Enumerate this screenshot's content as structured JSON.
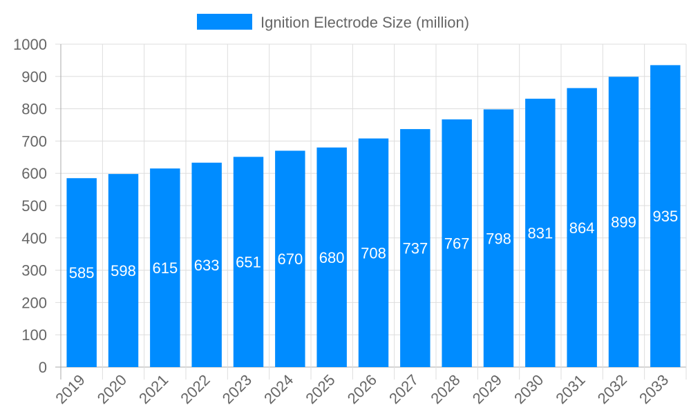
{
  "chart_data": {
    "type": "bar",
    "title": "",
    "xlabel": "",
    "ylabel": "",
    "categories": [
      "2019",
      "2020",
      "2021",
      "2022",
      "2023",
      "2024",
      "2025",
      "2026",
      "2027",
      "2028",
      "2029",
      "2030",
      "2031",
      "2032",
      "2033"
    ],
    "series": [
      {
        "name": "Ignition Electrode Size (million)",
        "values": [
          585,
          598,
          615,
          633,
          651,
          670,
          680,
          708,
          737,
          767,
          798,
          831,
          864,
          899,
          935
        ],
        "color": "#008cff"
      }
    ],
    "ylim": [
      0,
      1000
    ],
    "yticks": [
      0,
      100,
      200,
      300,
      400,
      500,
      600,
      700,
      800,
      900,
      1000
    ],
    "grid": true,
    "legend": "top-center",
    "data_labels": true
  }
}
